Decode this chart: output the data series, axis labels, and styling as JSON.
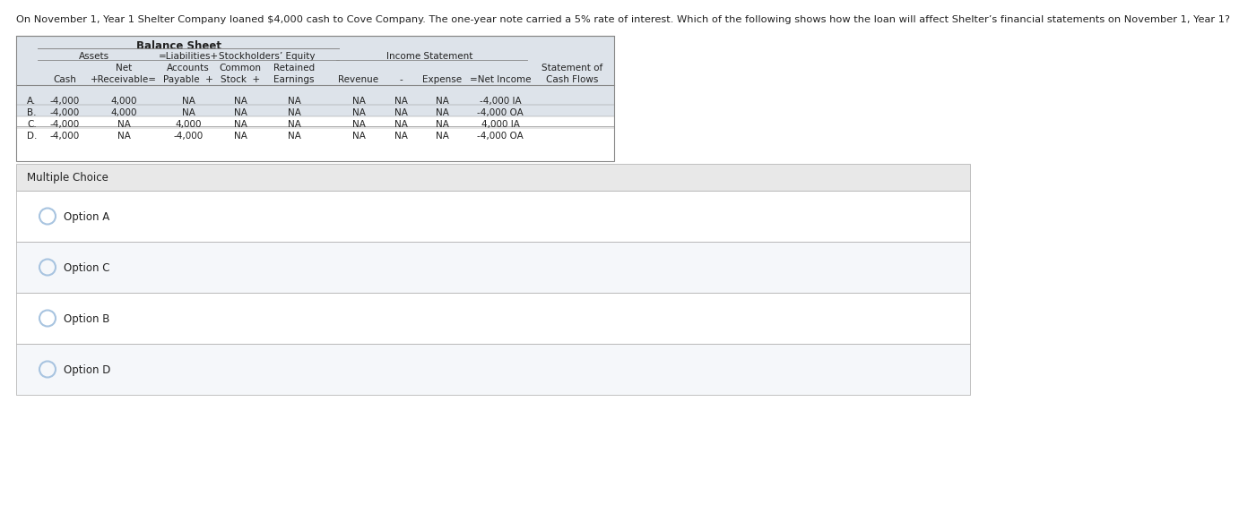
{
  "question": "On November 1, Year 1 Shelter Company loaned $4,000 cash to Cove Company. The one-year note carried a 5% rate of interest. Which of the following shows how the loan will affect Shelter’s financial statements on November 1, Year 1?",
  "table_title": "Balance Sheet",
  "rows": [
    [
      "A.",
      "-4,000",
      "4,000",
      "NA",
      "NA",
      "NA",
      "NA",
      "NA",
      "NA",
      "-4,000 IA"
    ],
    [
      "B.",
      "-4,000",
      "4,000",
      "NA",
      "NA",
      "NA",
      "NA",
      "NA",
      "NA",
      "-4,000 OA"
    ],
    [
      "C.",
      "-4,000",
      "NA",
      "4,000",
      "NA",
      "NA",
      "NA",
      "NA",
      "NA",
      "4,000 IA"
    ],
    [
      "D.",
      "-4,000",
      "NA",
      "-4,000",
      "NA",
      "NA",
      "NA",
      "NA",
      "NA",
      "-4,000 OA"
    ]
  ],
  "multiple_choice_label": "Multiple Choice",
  "options": [
    "Option A",
    "Option C",
    "Option B",
    "Option D"
  ],
  "bg_color_main": "#ffffff",
  "table_header_bg": "#dde3ea",
  "table_bg": "#ffffff",
  "border_color": "#aaaaaa",
  "circle_color": "#a8c4e0",
  "text_color": "#222222",
  "mc_header_bg": "#e8e8e8",
  "option_bg_odd": "#ffffff",
  "option_bg_even": "#f5f7fa",
  "line_color": "#888888"
}
